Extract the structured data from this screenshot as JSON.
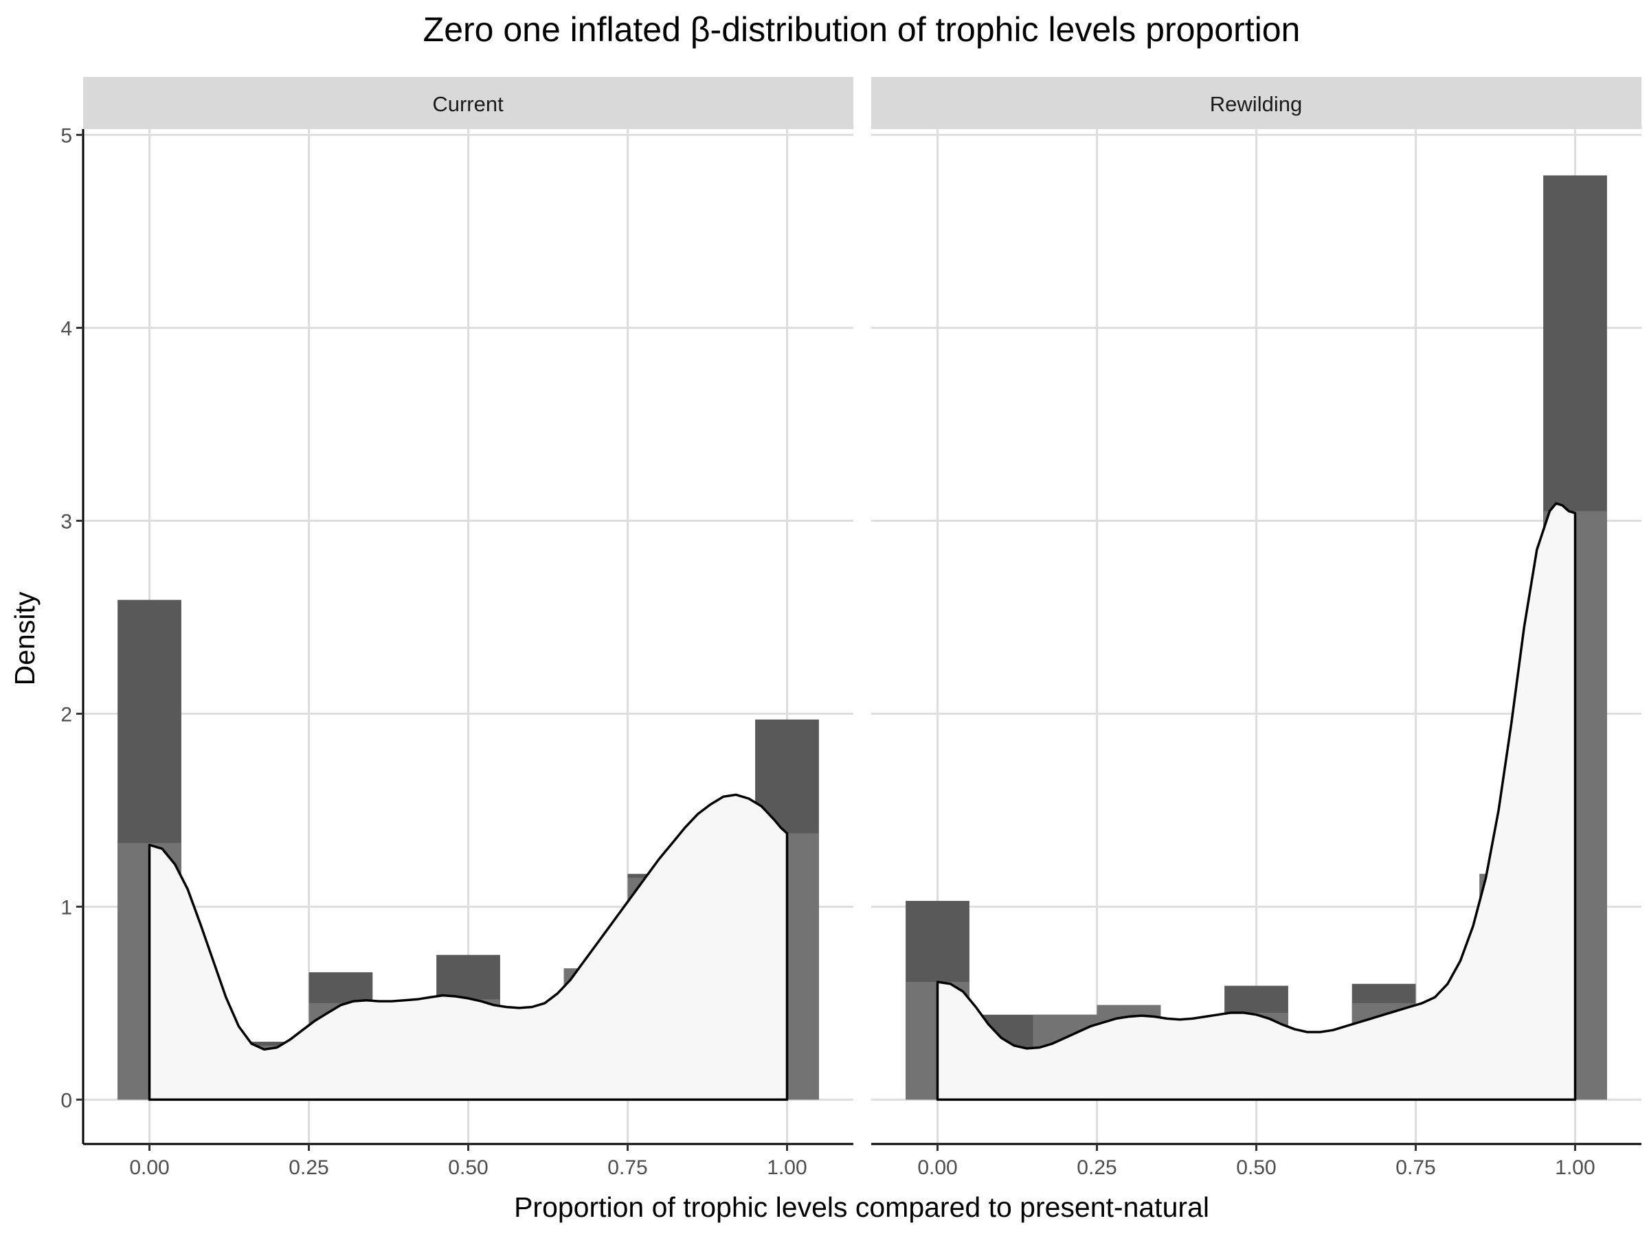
{
  "chart_data": {
    "type": "histogram",
    "title": "Zero one inflated β-distribution of trophic levels proportion",
    "xlabel": "Proportion of trophic levels compared to present-natural",
    "ylabel": "Density",
    "xlim": [
      -0.104,
      1.104
    ],
    "ylim": [
      -0.23,
      5.03
    ],
    "x_ticks": [
      0.0,
      0.25,
      0.5,
      0.75,
      1.0
    ],
    "x_tick_labels": [
      "0.00",
      "0.25",
      "0.50",
      "0.75",
      "1.00"
    ],
    "y_ticks": [
      0,
      1,
      2,
      3,
      4,
      5
    ],
    "y_tick_labels": [
      "0",
      "1",
      "2",
      "3",
      "4",
      "5"
    ],
    "grid": true,
    "bin_edges": [
      -0.05,
      0.05,
      0.15,
      0.25,
      0.35,
      0.45,
      0.55,
      0.65,
      0.75,
      0.85,
      0.95,
      1.05
    ],
    "colors": {
      "observed": "#595959",
      "expected": "#737373",
      "density_fill": "#f7f7f7",
      "density_line": "#000000",
      "grid": "#dedede",
      "strip": "#d9d9d9",
      "axis": "#000000"
    },
    "panels": [
      {
        "label": "Current",
        "observed": [
          2.59,
          0.0,
          0.3,
          0.66,
          0.18,
          0.75,
          0.27,
          0.68,
          1.17,
          1.44,
          1.97
        ],
        "expected": [
          1.33,
          0.0,
          0.28,
          0.5,
          0.18,
          0.52,
          0.27,
          0.68,
          1.15,
          1.41,
          1.38
        ],
        "density_x": [
          0.0,
          0.02,
          0.04,
          0.06,
          0.08,
          0.1,
          0.12,
          0.14,
          0.16,
          0.18,
          0.2,
          0.22,
          0.24,
          0.26,
          0.28,
          0.3,
          0.32,
          0.34,
          0.36,
          0.38,
          0.4,
          0.42,
          0.44,
          0.46,
          0.48,
          0.5,
          0.52,
          0.54,
          0.56,
          0.58,
          0.6,
          0.62,
          0.64,
          0.66,
          0.68,
          0.7,
          0.72,
          0.74,
          0.76,
          0.78,
          0.8,
          0.82,
          0.84,
          0.86,
          0.88,
          0.9,
          0.92,
          0.94,
          0.96,
          0.98,
          0.99,
          1.0
        ],
        "density_y": [
          1.32,
          1.3,
          1.22,
          1.09,
          0.91,
          0.72,
          0.53,
          0.38,
          0.29,
          0.26,
          0.27,
          0.31,
          0.36,
          0.41,
          0.45,
          0.49,
          0.51,
          0.515,
          0.51,
          0.51,
          0.515,
          0.52,
          0.53,
          0.54,
          0.535,
          0.525,
          0.51,
          0.49,
          0.48,
          0.475,
          0.48,
          0.5,
          0.55,
          0.62,
          0.71,
          0.8,
          0.89,
          0.98,
          1.07,
          1.16,
          1.25,
          1.33,
          1.41,
          1.48,
          1.53,
          1.57,
          1.58,
          1.56,
          1.52,
          1.45,
          1.41,
          1.38
        ]
      },
      {
        "label": "Rewilding",
        "observed": [
          1.03,
          0.44,
          0.44,
          0.49,
          0.19,
          0.59,
          0.14,
          0.6,
          0.49,
          1.17,
          4.79
        ],
        "expected": [
          0.61,
          0.08,
          0.44,
          0.49,
          0.19,
          0.45,
          0.14,
          0.5,
          0.49,
          1.17,
          3.05
        ],
        "density_x": [
          0.0,
          0.02,
          0.04,
          0.06,
          0.08,
          0.1,
          0.12,
          0.14,
          0.16,
          0.18,
          0.2,
          0.22,
          0.24,
          0.26,
          0.28,
          0.3,
          0.32,
          0.34,
          0.36,
          0.38,
          0.4,
          0.42,
          0.44,
          0.46,
          0.48,
          0.5,
          0.52,
          0.54,
          0.56,
          0.58,
          0.6,
          0.62,
          0.64,
          0.66,
          0.68,
          0.7,
          0.72,
          0.74,
          0.76,
          0.78,
          0.8,
          0.82,
          0.84,
          0.86,
          0.88,
          0.9,
          0.92,
          0.94,
          0.96,
          0.97,
          0.98,
          0.99,
          1.0
        ],
        "density_y": [
          0.61,
          0.6,
          0.56,
          0.48,
          0.39,
          0.32,
          0.28,
          0.265,
          0.27,
          0.29,
          0.32,
          0.35,
          0.38,
          0.4,
          0.42,
          0.43,
          0.435,
          0.43,
          0.42,
          0.415,
          0.42,
          0.43,
          0.44,
          0.45,
          0.45,
          0.44,
          0.42,
          0.39,
          0.365,
          0.35,
          0.35,
          0.36,
          0.38,
          0.4,
          0.42,
          0.44,
          0.46,
          0.48,
          0.5,
          0.53,
          0.6,
          0.72,
          0.9,
          1.15,
          1.5,
          1.95,
          2.45,
          2.85,
          3.05,
          3.09,
          3.08,
          3.05,
          3.04
        ]
      }
    ]
  }
}
